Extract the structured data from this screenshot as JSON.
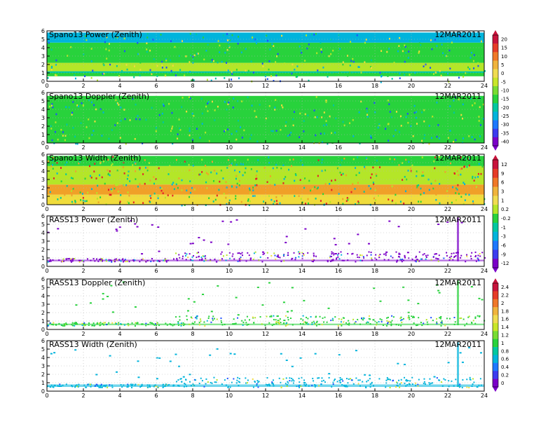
{
  "date": "12MAR2011",
  "x_ticks": [
    "0",
    "2",
    "4",
    "6",
    "8",
    "10",
    "12",
    "14",
    "16",
    "18",
    "20",
    "22",
    "24"
  ],
  "y_ticks": [
    "0",
    "1",
    "2",
    "3",
    "4",
    "5",
    "6"
  ],
  "colors": {
    "purple": "#7b00c8",
    "violet": "#5000f0",
    "blue": "#1e50ff",
    "cyan": "#00b4dc",
    "teal": "#00c8a0",
    "green": "#28d23c",
    "lime": "#b4e628",
    "yellow": "#f0dc3c",
    "orange": "#f0a028",
    "red": "#e61e28",
    "crimson": "#c80050"
  },
  "colorbars": [
    {
      "labels": [
        "20",
        "15",
        "10",
        "5",
        "0",
        "-5",
        "-10",
        "-15",
        "-20",
        "-25",
        "-30",
        "-35",
        "-40"
      ],
      "colors": [
        "#c8143c",
        "#e63c28",
        "#f07828",
        "#f0b43c",
        "#f0dc50",
        "#c8e628",
        "#78dc32",
        "#28d23c",
        "#00c8a0",
        "#00b4dc",
        "#1e78ff",
        "#3c3cf0",
        "#7b00c8"
      ]
    },
    {
      "labels": [
        "12",
        "9",
        "6",
        "3",
        "1",
        "0.2",
        "-0.2",
        "-1",
        "-3",
        "-6",
        "-9",
        "-12"
      ],
      "colors": [
        "#c8143c",
        "#e63c28",
        "#f07828",
        "#f0b43c",
        "#f0dc50",
        "#b4e628",
        "#28d23c",
        "#00c8a0",
        "#00b4dc",
        "#1e78ff",
        "#3c3cf0",
        "#7b00c8"
      ]
    },
    {
      "labels": [
        "2.4",
        "2.2",
        "2",
        "1.8",
        "1.6",
        "1.4",
        "1.2",
        "1",
        "0.8",
        "0.6",
        "0.4",
        "0.2",
        "0"
      ],
      "colors": [
        "#c8143c",
        "#e63c28",
        "#f07828",
        "#f0b43c",
        "#f0dc50",
        "#c8e628",
        "#78dc32",
        "#28d23c",
        "#00c8a0",
        "#00b4dc",
        "#1e78ff",
        "#3c3cf0",
        "#7b00c8"
      ]
    }
  ],
  "chart_data": [
    {
      "type": "heatmap",
      "title": "Spano13 Power (Zenith)",
      "x_range": [
        0,
        24
      ],
      "y_range": [
        0,
        6
      ],
      "colorbar": 0,
      "bands": [
        {
          "y": [
            0.6,
            1.0
          ],
          "color": "#28d23c"
        },
        {
          "y": [
            1.0,
            1.2
          ],
          "color": "#00c8a0"
        },
        {
          "y": [
            1.2,
            2.2
          ],
          "color": "#b4e628"
        },
        {
          "y": [
            2.2,
            4.6
          ],
          "color": "#28d23c"
        },
        {
          "y": [
            4.6,
            5.8
          ],
          "color": "#00b4dc"
        }
      ]
    },
    {
      "type": "heatmap",
      "title": "Spano13 Doppler (Zenith)",
      "x_range": [
        0,
        24
      ],
      "y_range": [
        0,
        6
      ],
      "colorbar": 0,
      "bands": [
        {
          "y": [
            0.0,
            5.6
          ],
          "color": "#28d23c"
        }
      ]
    },
    {
      "type": "heatmap",
      "title": "Spano13 Width (Zenith)",
      "x_range": [
        0,
        24
      ],
      "y_range": [
        0,
        6
      ],
      "colorbar": 1,
      "bands": [
        {
          "y": [
            0.0,
            1.2
          ],
          "color": "#f0dc3c"
        },
        {
          "y": [
            1.2,
            2.4
          ],
          "color": "#f0a028"
        },
        {
          "y": [
            2.4,
            4.6
          ],
          "color": "#b4e628"
        },
        {
          "y": [
            4.6,
            5.8
          ],
          "color": "#28d23c"
        }
      ]
    },
    {
      "type": "scatter",
      "title": "RASS13 Power (Zenith)",
      "x_range": [
        0,
        24
      ],
      "y_range": [
        0,
        6
      ],
      "colorbar": 1,
      "base_band": [
        0.6,
        0.8
      ],
      "color": "#7b00c8",
      "spike_x": 22.5
    },
    {
      "type": "scatter",
      "title": "RASS13 Doppler (Zenith)",
      "x_range": [
        0,
        24
      ],
      "y_range": [
        0,
        6
      ],
      "colorbar": 2,
      "base_band": [
        0.5,
        0.7
      ],
      "color": "#28d23c",
      "spike_x": 22.5
    },
    {
      "type": "scatter",
      "title": "RASS13 Width (Zenith)",
      "x_range": [
        0,
        24
      ],
      "y_range": [
        0,
        6
      ],
      "colorbar": 2,
      "base_band": [
        0.5,
        0.8
      ],
      "color": "#00b4dc",
      "spike_x": 22.5
    }
  ]
}
